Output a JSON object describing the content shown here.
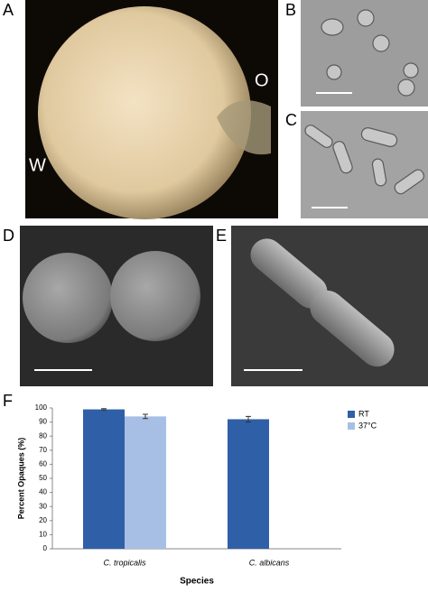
{
  "panel_labels": [
    "A",
    "B",
    "C",
    "D",
    "E",
    "F"
  ],
  "annotations": [
    "W",
    "O"
  ],
  "chart_data": {
    "type": "bar",
    "x_label": "Species",
    "y_label": "Percent Opaques (%)",
    "categories": [
      "C. tropicalis",
      "C. albicans"
    ],
    "series": [
      {
        "name": "RT",
        "color": "#2f5fa7",
        "values": [
          99,
          92
        ],
        "errors": [
          0.5,
          2
        ]
      },
      {
        "name": "37°C",
        "color": "#a7bfe4",
        "values": [
          94,
          0
        ],
        "errors": [
          1.5,
          0
        ]
      }
    ],
    "ylim": [
      0,
      100
    ],
    "yticks": [
      0,
      10,
      20,
      30,
      40,
      50,
      60,
      70,
      80,
      90,
      100
    ],
    "grid": false,
    "legend": "upper right"
  }
}
